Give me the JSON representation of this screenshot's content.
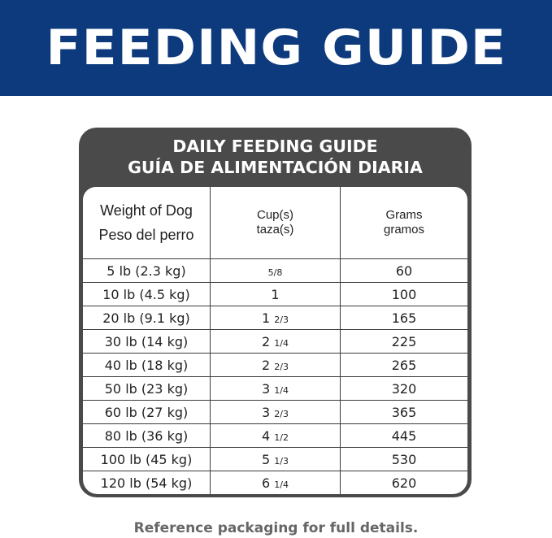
{
  "banner": {
    "title": "FEEDING GUIDE",
    "color": "#0d3a7c"
  },
  "guide": {
    "title_en": "DAILY FEEDING GUIDE",
    "title_es": "GUÍA DE ALIMENTACIÓN DIARIA",
    "headers": {
      "weight_en": "Weight of Dog",
      "weight_es": "Peso del perro",
      "cups_en": "Cup(s)",
      "cups_es": "taza(s)",
      "grams_en": "Grams",
      "grams_es": "gramos"
    },
    "rows": [
      {
        "weight": "5 lb (2.3 kg)",
        "cups_whole": "",
        "cups_fraction": "5/8",
        "grams": "60"
      },
      {
        "weight": "10 lb (4.5 kg)",
        "cups_whole": "1",
        "cups_fraction": "",
        "grams": "100"
      },
      {
        "weight": "20 lb (9.1 kg)",
        "cups_whole": "1",
        "cups_fraction": "2/3",
        "grams": "165"
      },
      {
        "weight": "30 lb (14 kg)",
        "cups_whole": "2",
        "cups_fraction": "1/4",
        "grams": "225"
      },
      {
        "weight": "40 lb (18 kg)",
        "cups_whole": "2",
        "cups_fraction": "2/3",
        "grams": "265"
      },
      {
        "weight": "50 lb (23 kg)",
        "cups_whole": "3",
        "cups_fraction": "1/4",
        "grams": "320"
      },
      {
        "weight": "60 lb (27 kg)",
        "cups_whole": "3",
        "cups_fraction": "2/3",
        "grams": "365"
      },
      {
        "weight": "80 lb (36 kg)",
        "cups_whole": "4",
        "cups_fraction": "1/2",
        "grams": "445"
      },
      {
        "weight": "100 lb (45 kg)",
        "cups_whole": "5",
        "cups_fraction": "1/3",
        "grams": "530"
      },
      {
        "weight": "120 lb (54 kg)",
        "cups_whole": "6",
        "cups_fraction": "1/4",
        "grams": "620"
      }
    ]
  },
  "footer": "Reference packaging for full details."
}
